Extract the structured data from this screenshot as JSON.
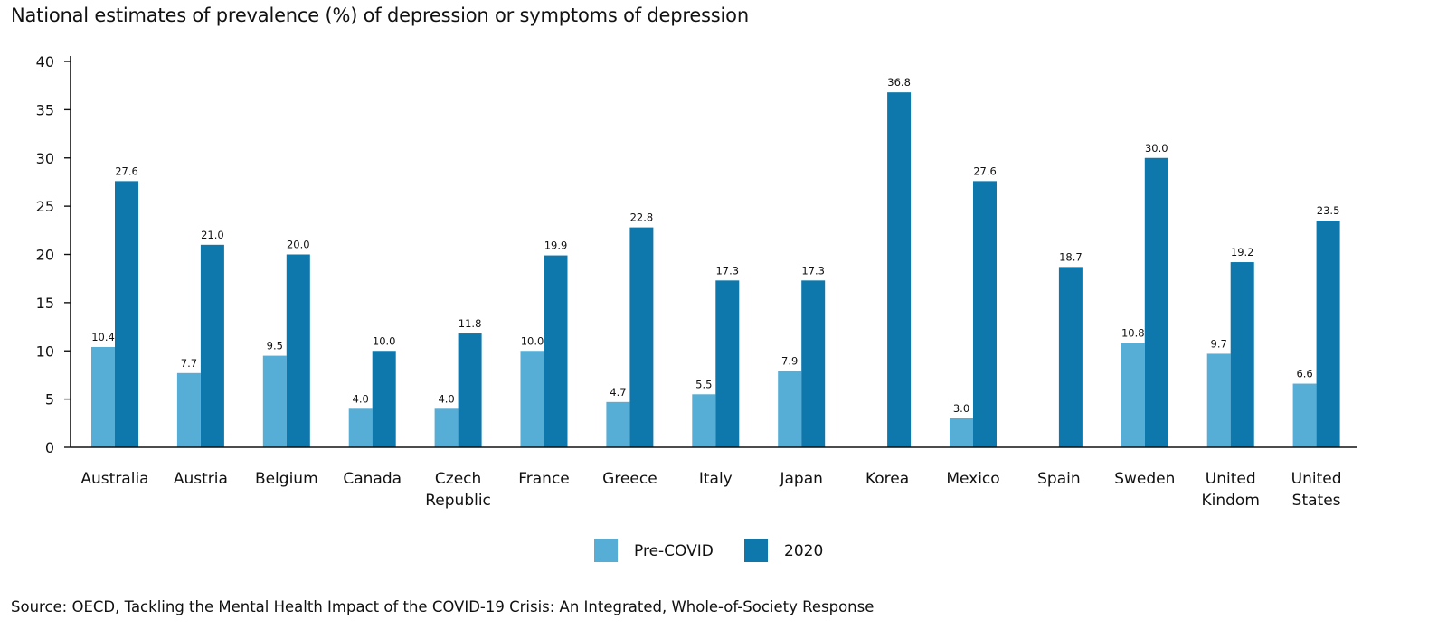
{
  "chart_data": {
    "type": "bar",
    "title": "National estimates of prevalence (%) of depression or symptoms of depression",
    "source": "Source: OECD, Tackling the Mental Health Impact of the COVID-19 Crisis: An Integrated, Whole-of-Society Response",
    "xlabel": "",
    "ylabel": "",
    "ylim": [
      0,
      40
    ],
    "yticks": [
      0,
      5,
      10,
      15,
      20,
      25,
      30,
      35,
      40
    ],
    "grid": false,
    "legend_position": "bottom",
    "categories": [
      [
        "Australia"
      ],
      [
        "Austria"
      ],
      [
        "Belgium"
      ],
      [
        "Canada"
      ],
      [
        "Czech",
        "Republic"
      ],
      [
        "France"
      ],
      [
        "Greece"
      ],
      [
        "Italy"
      ],
      [
        "Japan"
      ],
      [
        "Korea"
      ],
      [
        "Mexico"
      ],
      [
        "Spain"
      ],
      [
        "Sweden"
      ],
      [
        "United",
        "Kindom"
      ],
      [
        "United",
        "States"
      ]
    ],
    "series": [
      {
        "name": "Pre-COVID",
        "color": "#56aed7",
        "values": [
          10.4,
          7.7,
          9.5,
          4.0,
          4.0,
          10.0,
          4.7,
          5.5,
          7.9,
          null,
          3.0,
          null,
          10.8,
          9.7,
          6.6
        ],
        "labels": [
          "10.4",
          "7.7",
          "9.5",
          "4.0",
          "4.0",
          "10.0",
          "4.7",
          "5.5",
          "7.9",
          null,
          "3.0",
          null,
          "10.8",
          "9.7",
          "6.6"
        ]
      },
      {
        "name": "2020",
        "color": "#0e78ad",
        "values": [
          27.6,
          21.0,
          20.0,
          10.0,
          11.8,
          19.9,
          22.8,
          17.3,
          17.3,
          36.8,
          27.6,
          18.7,
          30.0,
          19.2,
          23.5
        ],
        "labels": [
          "27.6",
          "21.0",
          "20.0",
          "10.0",
          "11.8",
          "19.9",
          "22.8",
          "17.3",
          "17.3",
          "36.8",
          "27.6",
          "18.7",
          "30.0",
          "19.2",
          "23.5"
        ]
      }
    ]
  }
}
